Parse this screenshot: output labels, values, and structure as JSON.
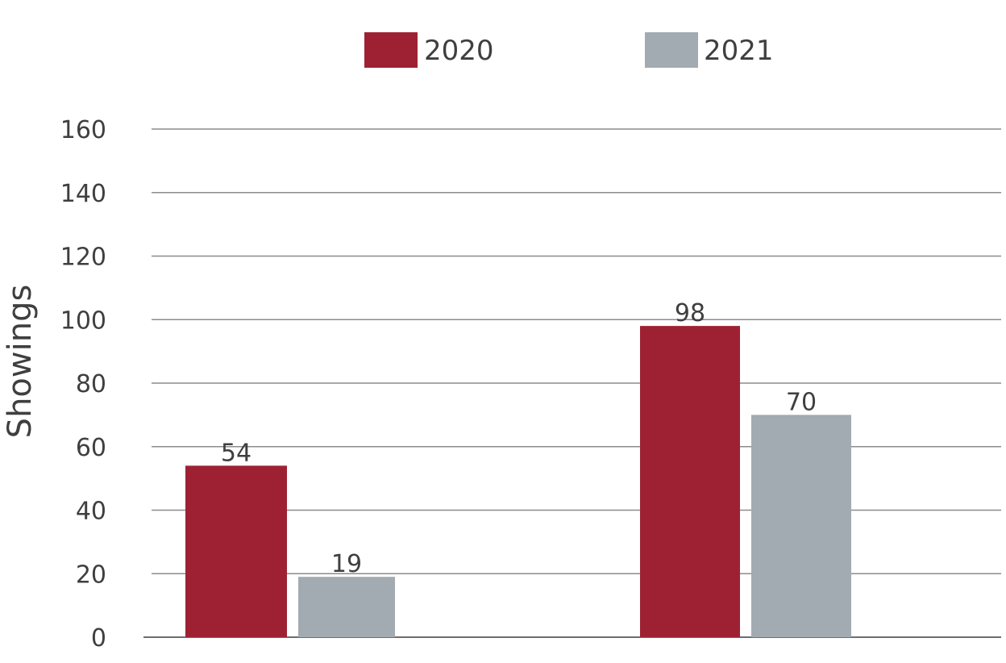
{
  "chart_data": {
    "type": "bar",
    "categories": [
      "",
      ""
    ],
    "series": [
      {
        "name": "2020",
        "values": [
          54,
          98
        ],
        "color": "#9e2133"
      },
      {
        "name": "2021",
        "values": [
          19,
          70
        ],
        "color": "#a2abb1"
      }
    ],
    "title": "",
    "xlabel": "",
    "ylabel": "Showings",
    "ylim": [
      0,
      160
    ],
    "yticks": [
      0,
      20,
      40,
      60,
      80,
      100,
      120,
      140,
      160
    ],
    "grid": true,
    "legend_position": "top-center",
    "data_labels": true
  }
}
